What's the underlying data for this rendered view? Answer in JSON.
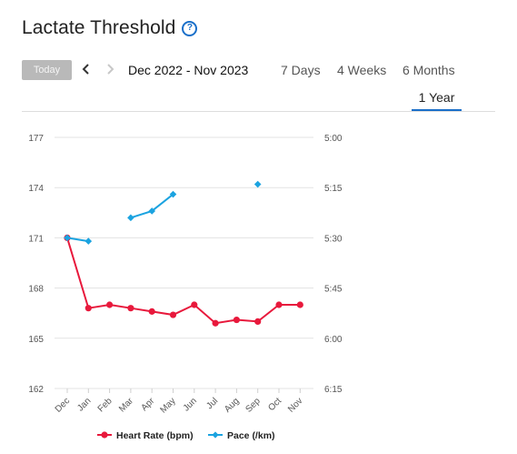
{
  "header": {
    "title": "Lactate Threshold",
    "help_icon": "help-circle-icon"
  },
  "toolbar": {
    "today_label": "Today",
    "prev_icon": "chevron-left-icon",
    "next_icon": "chevron-right-icon",
    "date_range": "Dec 2022 - Nov 2023"
  },
  "tabs": [
    {
      "label": "7 Days",
      "active": false
    },
    {
      "label": "4 Weeks",
      "active": false
    },
    {
      "label": "6 Months",
      "active": false
    },
    {
      "label": "1 Year",
      "active": true
    }
  ],
  "colors": {
    "accent": "#1a6fc9",
    "heart_rate": "#e8193c",
    "pace": "#1ba3e0"
  },
  "chart_data": {
    "type": "line",
    "categories": [
      "Dec",
      "Jan",
      "Feb",
      "Mar",
      "Apr",
      "May",
      "Jun",
      "Jul",
      "Aug",
      "Sep",
      "Oct",
      "Nov"
    ],
    "left_axis": {
      "ticks": [
        "177",
        "174",
        "171",
        "168",
        "165",
        "162"
      ],
      "ylim": [
        162,
        177
      ]
    },
    "right_axis": {
      "ticks": [
        "5:00",
        "5:15",
        "5:30",
        "5:45",
        "6:00",
        "6:15"
      ],
      "ylim_seconds": [
        300,
        375
      ]
    },
    "grid": true,
    "legend_position": "bottom",
    "series": [
      {
        "name": "Heart Rate (bpm)",
        "axis": "left",
        "marker": "circle",
        "color": "#e8193c",
        "values": [
          171,
          166.8,
          167,
          166.8,
          166.6,
          166.4,
          167,
          165.9,
          166.1,
          166,
          167,
          167
        ]
      },
      {
        "name": "Pace (/km)",
        "axis": "right",
        "marker": "diamond",
        "color": "#1ba3e0",
        "values_seconds": [
          330,
          331,
          null,
          324,
          322,
          317,
          null,
          null,
          null,
          314,
          null,
          null
        ]
      }
    ]
  }
}
